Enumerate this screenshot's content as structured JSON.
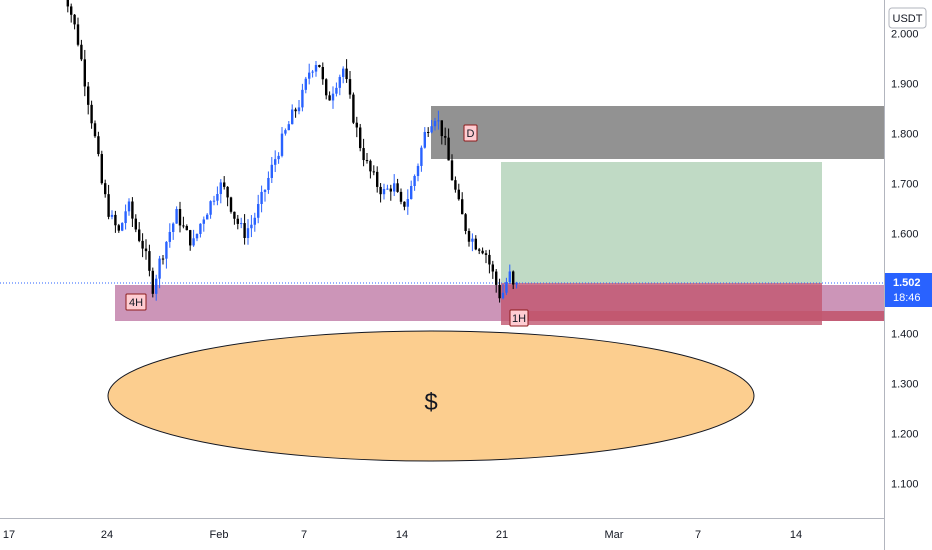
{
  "currency_badge": "USDT",
  "price_tag": {
    "price": "1.502",
    "countdown": "18:46",
    "color": "#2962ff"
  },
  "colors": {
    "bull": "#2962ff",
    "bear": "#000000",
    "daily_zone": "#7f7f7f",
    "h4_zone": "#c98fb4",
    "target_zone": "#b9d6bf",
    "stop_zone": "#c2566f",
    "ellipse_fill": "#fcce8f"
  },
  "annotations": {
    "daily_zone_label": "D",
    "h4_zone_label": "4H",
    "h1_zone_label": "1H",
    "ellipse_label": "$"
  },
  "chart_data": {
    "type": "candlestick",
    "y_ticks": [
      "2.000",
      "1.900",
      "1.800",
      "1.700",
      "1.600",
      "1.500",
      "1.400",
      "1.300",
      "1.200",
      "1.100"
    ],
    "x_ticks": [
      "17",
      "24",
      "Feb",
      "7",
      "14",
      "21",
      "Mar",
      "7",
      "14"
    ],
    "ylim": [
      1.03,
      2.06
    ],
    "last_price": 1.502,
    "zones": {
      "daily": {
        "low": 1.75,
        "high": 1.855
      },
      "h4": {
        "low": 1.425,
        "high": 1.497
      },
      "h1": {
        "low": 1.425,
        "high": 1.445
      },
      "target": {
        "low": 1.503,
        "high": 1.745
      },
      "stop": {
        "low": 1.413,
        "high": 1.503
      }
    },
    "price_path": [
      [
        0,
        2.12
      ],
      [
        2,
        1.99
      ],
      [
        4,
        1.8
      ],
      [
        5,
        1.69
      ],
      [
        6,
        1.63
      ],
      [
        7,
        1.6
      ],
      [
        8,
        1.66
      ],
      [
        9,
        1.61
      ],
      [
        10,
        1.57
      ],
      [
        11,
        1.49
      ],
      [
        12,
        1.55
      ],
      [
        13,
        1.6
      ],
      [
        14,
        1.64
      ],
      [
        15,
        1.6
      ],
      [
        16,
        1.58
      ],
      [
        17,
        1.63
      ],
      [
        18,
        1.66
      ],
      [
        19,
        1.7
      ],
      [
        20,
        1.68
      ],
      [
        21,
        1.63
      ],
      [
        22,
        1.6
      ],
      [
        23,
        1.62
      ],
      [
        24,
        1.66
      ],
      [
        25,
        1.71
      ],
      [
        26,
        1.76
      ],
      [
        27,
        1.8
      ],
      [
        28,
        1.84
      ],
      [
        29,
        1.87
      ],
      [
        30,
        1.93
      ],
      [
        31,
        1.95
      ],
      [
        32,
        1.86
      ],
      [
        33,
        1.9
      ],
      [
        34,
        1.93
      ],
      [
        35,
        1.85
      ],
      [
        36,
        1.78
      ],
      [
        37,
        1.73
      ],
      [
        38,
        1.7
      ],
      [
        39,
        1.68
      ],
      [
        40,
        1.7
      ],
      [
        41,
        1.65
      ],
      [
        42,
        1.68
      ],
      [
        43,
        1.74
      ],
      [
        44,
        1.81
      ],
      [
        45,
        1.84
      ],
      [
        46,
        1.8
      ],
      [
        47,
        1.72
      ],
      [
        48,
        1.65
      ],
      [
        49,
        1.6
      ],
      [
        50,
        1.58
      ],
      [
        51,
        1.57
      ],
      [
        52,
        1.52
      ],
      [
        53,
        1.47
      ],
      [
        54,
        1.52
      ],
      [
        55,
        1.46
      ]
    ]
  }
}
